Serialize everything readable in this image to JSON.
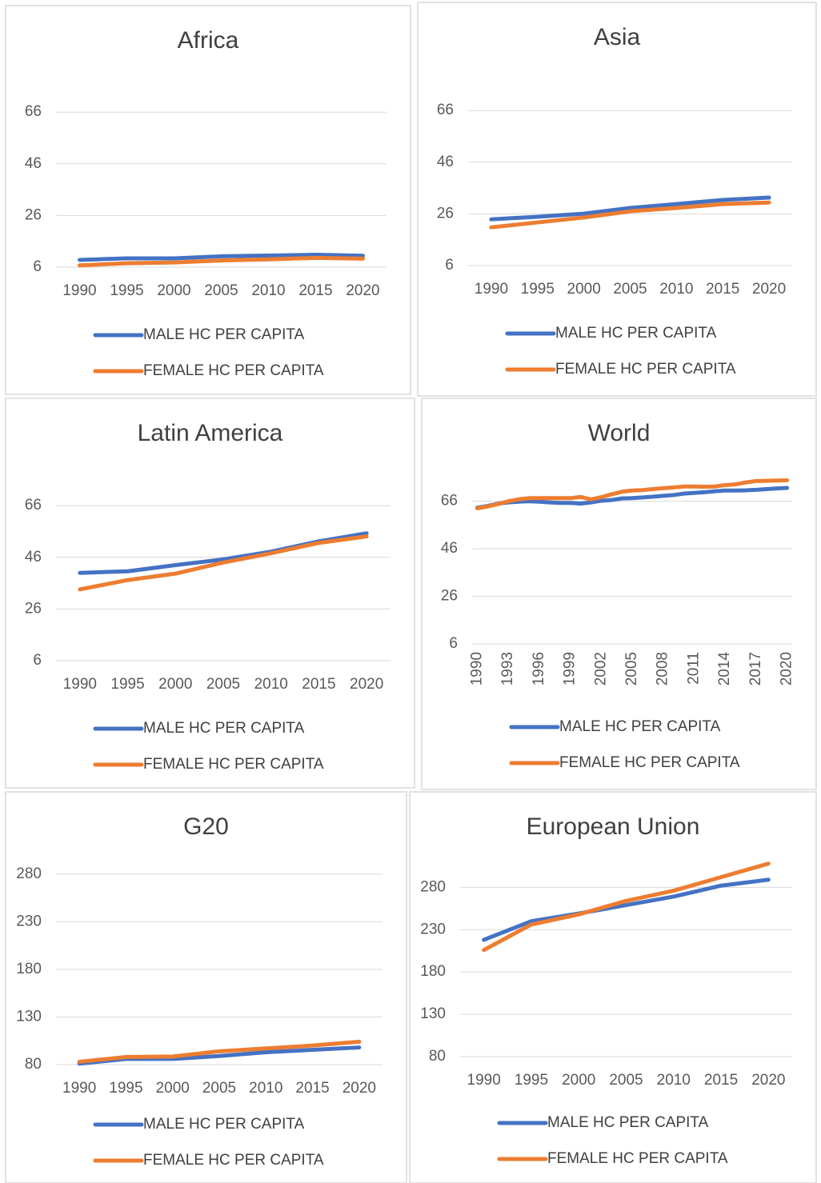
{
  "chart_data": [
    {
      "type": "line",
      "title": "Africa",
      "categories": [
        "1990",
        "1995",
        "2000",
        "2005",
        "2010",
        "2015",
        "2020"
      ],
      "series": [
        {
          "name": "MALE HC PER CAPITA",
          "color": "#4472c4",
          "values": [
            8.8,
            9.4,
            9.4,
            10.2,
            10.5,
            10.8,
            10.4
          ]
        },
        {
          "name": "FEMALE HC PER CAPITA",
          "color": "#ed7d31",
          "values": [
            6.7,
            7.5,
            7.8,
            8.6,
            9.0,
            9.6,
            9.3
          ]
        }
      ],
      "ylim": [
        6,
        80
      ],
      "yticks": [
        6,
        26,
        46,
        66
      ],
      "grid": true
    },
    {
      "type": "line",
      "title": "Asia",
      "categories": [
        "1990",
        "1995",
        "2000",
        "2005",
        "2010",
        "2015",
        "2020"
      ],
      "series": [
        {
          "name": "MALE HC PER CAPITA",
          "color": "#4472c4",
          "values": [
            23.9,
            24.9,
            26.1,
            28.3,
            29.8,
            31.4,
            32.3
          ]
        },
        {
          "name": "FEMALE HC PER CAPITA",
          "color": "#ed7d31",
          "values": [
            20.8,
            22.7,
            24.6,
            27.0,
            28.3,
            29.8,
            30.4
          ]
        }
      ],
      "ylim": [
        6,
        80
      ],
      "yticks": [
        6,
        26,
        46,
        66
      ],
      "grid": true
    },
    {
      "type": "line",
      "title": "Latin America",
      "categories": [
        "1990",
        "1995",
        "2000",
        "2005",
        "2010",
        "2015",
        "2020"
      ],
      "series": [
        {
          "name": "MALE HC PER CAPITA",
          "color": "#4472c4",
          "values": [
            40.0,
            40.6,
            43.0,
            45.2,
            48.2,
            52.2,
            55.3
          ]
        },
        {
          "name": "FEMALE HC PER CAPITA",
          "color": "#ed7d31",
          "values": [
            33.6,
            37.2,
            39.7,
            44.0,
            47.6,
            51.6,
            54.1
          ]
        }
      ],
      "ylim": [
        6,
        80
      ],
      "yticks": [
        6,
        26,
        46,
        66
      ],
      "grid": true
    },
    {
      "type": "line",
      "title": "World",
      "categories": [
        "1990",
        null,
        null,
        "1993",
        null,
        null,
        "1996",
        null,
        null,
        "1999",
        null,
        null,
        "2002",
        null,
        null,
        "2005",
        null,
        null,
        "2008",
        null,
        null,
        "2011",
        null,
        null,
        "2014",
        null,
        null,
        "2017",
        null,
        null,
        "2020"
      ],
      "series": [
        {
          "name": "MALE HC PER CAPITA",
          "color": "#4472c4",
          "values": [
            63.3,
            64,
            65,
            65.5,
            65.8,
            66,
            65.8,
            65.5,
            65.3,
            65.3,
            65,
            65.5,
            66.2,
            66.5,
            67.2,
            67.3,
            67.6,
            67.9,
            68.3,
            68.6,
            69.2,
            69.5,
            69.8,
            70.2,
            70.5,
            70.5,
            70.6,
            70.8,
            71.1,
            71.4,
            71.6
          ]
        },
        {
          "name": "FEMALE HC PER CAPITA",
          "color": "#ed7d31",
          "values": [
            63,
            63.8,
            64.8,
            66,
            66.8,
            67.3,
            67.3,
            67.3,
            67.3,
            67.3,
            67.8,
            66.8,
            67.7,
            68.9,
            70,
            70.5,
            70.7,
            71.1,
            71.5,
            71.8,
            72.2,
            72.2,
            72.1,
            72.2,
            72.8,
            73.1,
            73.9,
            74.5,
            74.6,
            74.7,
            74.8
          ]
        }
      ],
      "ylim": [
        6,
        78
      ],
      "yticks": [
        6,
        26,
        46,
        66
      ],
      "grid": true
    },
    {
      "type": "line",
      "title": "G20",
      "categories": [
        "1990",
        "1995",
        "2000",
        "2005",
        "2010",
        "2015",
        "2020"
      ],
      "series": [
        {
          "name": "MALE HC PER CAPITA",
          "color": "#4472c4",
          "values": [
            81,
            86,
            86,
            89,
            93,
            95.5,
            98
          ]
        },
        {
          "name": "FEMALE HC PER CAPITA",
          "color": "#ed7d31",
          "values": [
            83,
            88,
            88.5,
            94,
            97,
            100,
            104
          ]
        }
      ],
      "ylim": [
        80,
        300
      ],
      "yticks": [
        80,
        130,
        180,
        230,
        280
      ],
      "grid": true
    },
    {
      "type": "line",
      "title": "European Union",
      "categories": [
        "1990",
        "1995",
        "2000",
        "2005",
        "2010",
        "2015",
        "2020"
      ],
      "series": [
        {
          "name": "MALE HC PER CAPITA",
          "color": "#4472c4",
          "values": [
            218,
            240,
            249,
            259,
            269,
            282,
            289
          ]
        },
        {
          "name": "FEMALE HC PER CAPITA",
          "color": "#ed7d31",
          "values": [
            206,
            236,
            248,
            264,
            276,
            292,
            308
          ]
        }
      ],
      "ylim": [
        80,
        320
      ],
      "yticks": [
        80,
        130,
        180,
        230,
        280
      ],
      "grid": true
    }
  ]
}
